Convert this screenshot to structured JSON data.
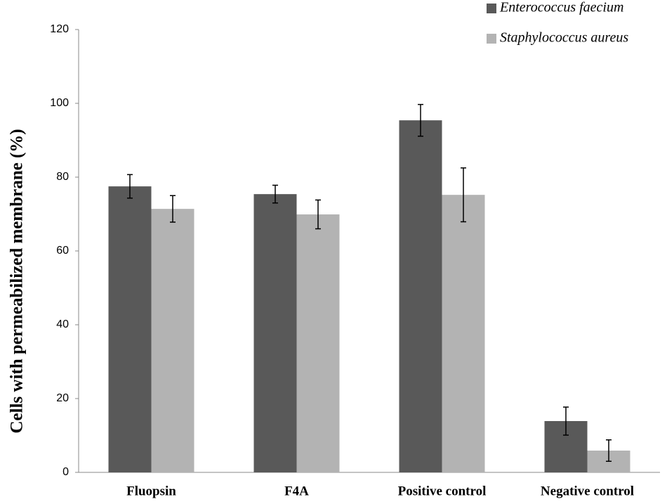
{
  "chart_data": {
    "type": "bar",
    "y_label": "Cells with permeabilized  membrane  (%)",
    "categories": [
      "Fluopsin",
      "F4A",
      "Positive control",
      "Negative control"
    ],
    "series": [
      {
        "name": "Enterococcus faecium",
        "color": "#595959",
        "values": [
          77.5,
          75.4,
          95.4,
          13.9
        ],
        "errors": [
          3.2,
          2.4,
          4.3,
          3.8
        ]
      },
      {
        "name": "Staphylococcus aureus",
        "color": "#b3b3b3",
        "values": [
          71.4,
          69.9,
          75.2,
          5.9
        ],
        "errors": [
          3.6,
          3.9,
          7.3,
          2.9
        ]
      }
    ],
    "ylim": [
      0,
      120
    ],
    "yticks": [
      0,
      20,
      40,
      60,
      80,
      100,
      120
    ],
    "grid": false,
    "legend": "top-right"
  }
}
